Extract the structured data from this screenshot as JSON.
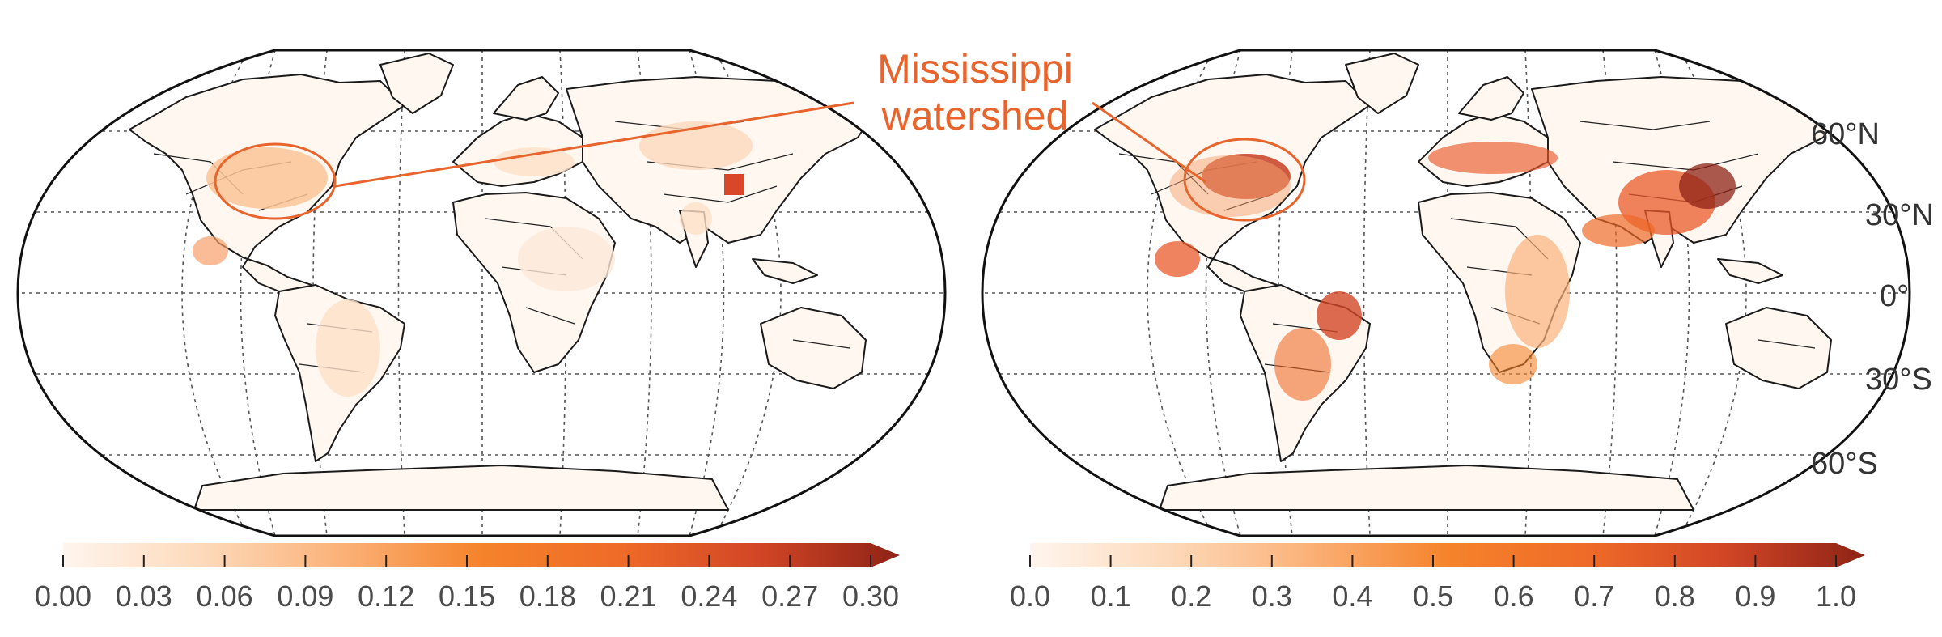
{
  "annotation": {
    "line1": "Mississippi",
    "line2": "watershed",
    "color": "#e8642d"
  },
  "latitude_labels": [
    "60°N",
    "30°N",
    "0°",
    "30°S",
    "60°S"
  ],
  "colorbar_left": {
    "ticks": [
      "0.00",
      "0.03",
      "0.06",
      "0.09",
      "0.12",
      "0.15",
      "0.18",
      "0.21",
      "0.24",
      "0.27",
      "0.30"
    ],
    "min": 0.0,
    "max": 0.3,
    "extend": "max"
  },
  "colorbar_right": {
    "ticks": [
      "0.0",
      "0.1",
      "0.2",
      "0.3",
      "0.4",
      "0.5",
      "0.6",
      "0.7",
      "0.8",
      "0.9",
      "1.0"
    ],
    "min": 0.0,
    "max": 1.0,
    "extend": "max"
  },
  "colormap": [
    "#fff5ee",
    "#fdd0a6",
    "#fba35e",
    "#f5832b",
    "#e9592a",
    "#c63e22",
    "#8e2316"
  ],
  "maps": [
    {
      "name": "left-map",
      "highlight": "Mississippi watershed"
    },
    {
      "name": "right-map",
      "highlight": "Mississippi watershed"
    }
  ]
}
